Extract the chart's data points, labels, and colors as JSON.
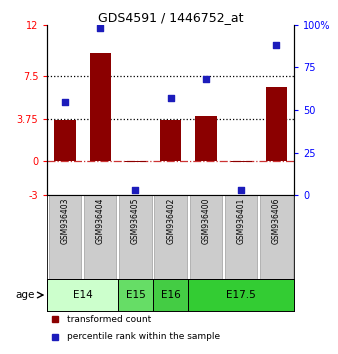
{
  "title": "GDS4591 / 1446752_at",
  "samples": [
    "GSM936403",
    "GSM936404",
    "GSM936405",
    "GSM936402",
    "GSM936400",
    "GSM936401",
    "GSM936406"
  ],
  "transformed_count": [
    3.6,
    9.5,
    -0.05,
    3.6,
    4.0,
    -0.1,
    6.5
  ],
  "percentile_rank": [
    55,
    98,
    3,
    57,
    68,
    3,
    88
  ],
  "left_ylim": [
    -3,
    12
  ],
  "right_ylim": [
    0,
    100
  ],
  "left_yticks": [
    -3,
    0,
    3.75,
    7.5,
    12
  ],
  "right_yticks": [
    0,
    25,
    50,
    75,
    100
  ],
  "left_yticklabels": [
    "-3",
    "0",
    "3.75",
    "7.5",
    "12"
  ],
  "right_yticklabels": [
    "0",
    "25",
    "50",
    "75",
    "100%"
  ],
  "hlines": [
    7.5,
    3.75
  ],
  "bar_color": "#8B0000",
  "dot_color": "#1C1CBB",
  "zero_line_color": "#CC3333",
  "age_groups": [
    {
      "label": "E14",
      "start": 0,
      "end": 2,
      "color": "#ccffcc"
    },
    {
      "label": "E15",
      "start": 2,
      "end": 3,
      "color": "#66dd66"
    },
    {
      "label": "E16",
      "start": 3,
      "end": 4,
      "color": "#44cc44"
    },
    {
      "label": "E17.5",
      "start": 4,
      "end": 7,
      "color": "#33cc33"
    }
  ],
  "legend_items": [
    {
      "label": "transformed count",
      "color": "#8B0000"
    },
    {
      "label": "percentile rank within the sample",
      "color": "#1C1CBB"
    }
  ],
  "sample_bg_color": "#cccccc",
  "background_color": "#ffffff"
}
